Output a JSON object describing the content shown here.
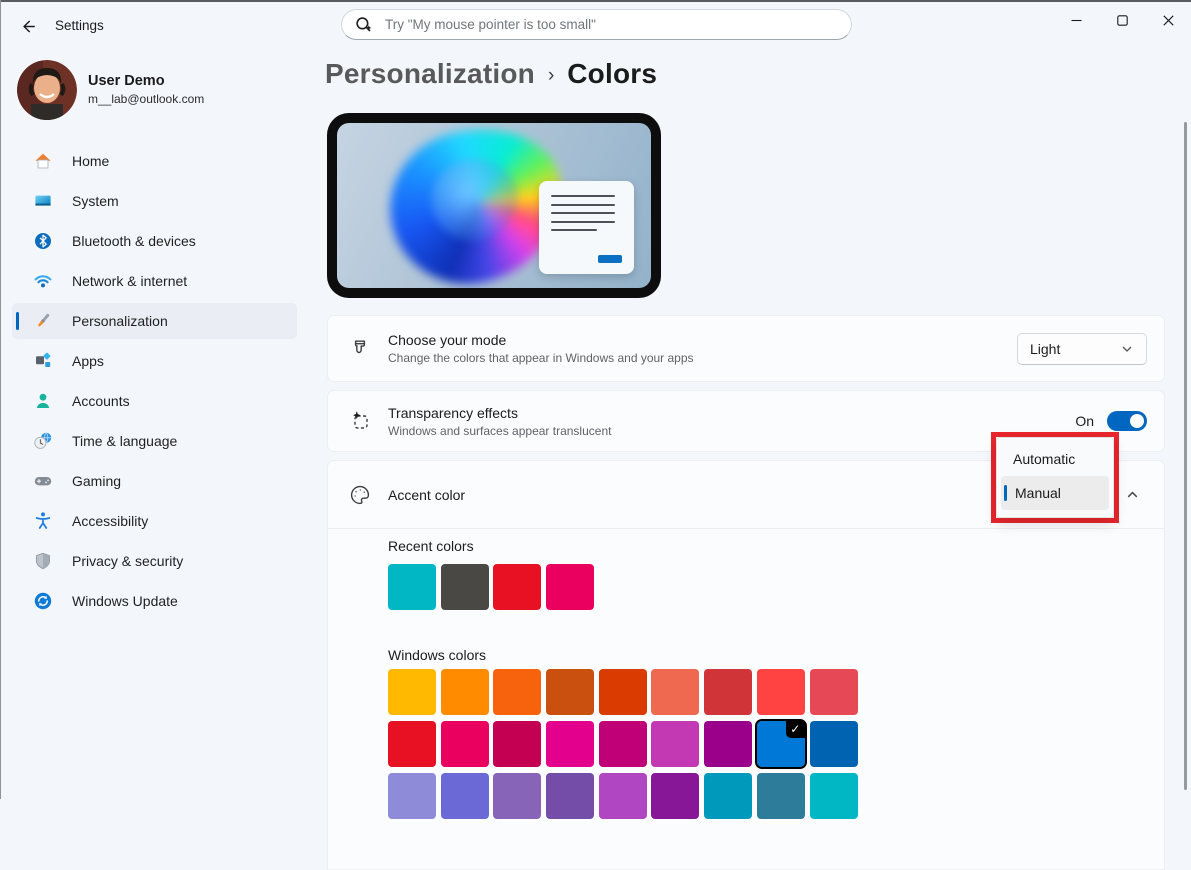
{
  "window": {
    "title": "Settings"
  },
  "search": {
    "placeholder": "Try \"My mouse pointer is too small\""
  },
  "user": {
    "name": "User Demo",
    "email": "m__lab@outlook.com"
  },
  "sidebar": {
    "items": [
      {
        "label": "Home",
        "icon": "home-icon"
      },
      {
        "label": "System",
        "icon": "system-icon"
      },
      {
        "label": "Bluetooth & devices",
        "icon": "bluetooth-icon"
      },
      {
        "label": "Network & internet",
        "icon": "network-icon"
      },
      {
        "label": "Personalization",
        "icon": "personalization-icon",
        "active": true
      },
      {
        "label": "Apps",
        "icon": "apps-icon"
      },
      {
        "label": "Accounts",
        "icon": "accounts-icon"
      },
      {
        "label": "Time & language",
        "icon": "time-language-icon"
      },
      {
        "label": "Gaming",
        "icon": "gaming-icon"
      },
      {
        "label": "Accessibility",
        "icon": "accessibility-icon"
      },
      {
        "label": "Privacy & security",
        "icon": "privacy-icon"
      },
      {
        "label": "Windows Update",
        "icon": "windows-update-icon"
      }
    ]
  },
  "breadcrumb": {
    "parent": "Personalization",
    "separator": "›",
    "current": "Colors"
  },
  "rows": {
    "mode": {
      "title": "Choose your mode",
      "subtitle": "Change the colors that appear in Windows and your apps",
      "value": "Light"
    },
    "transparency": {
      "title": "Transparency effects",
      "subtitle": "Windows and surfaces appear translucent",
      "state": "On"
    },
    "accent": {
      "title": "Accent color"
    }
  },
  "accent_dropdown": {
    "options": [
      "Automatic",
      "Manual"
    ],
    "selected": "Manual"
  },
  "accent_section": {
    "recent_label": "Recent colors",
    "recent_colors": [
      "#00B7C3",
      "#4A4845",
      "#E81123",
      "#EA005E"
    ],
    "windows_label": "Windows colors",
    "windows_colors": [
      "#FFB900",
      "#FF8C00",
      "#F7630C",
      "#CA5010",
      "#DA3B01",
      "#EF6950",
      "#D13438",
      "#FF4343",
      "#E74856",
      "#E81123",
      "#EA005E",
      "#C30052",
      "#E3008C",
      "#BF0077",
      "#C239B3",
      "#9A0089",
      "#0078D7",
      "#0063B1",
      "#8E8CD8",
      "#6B69D6",
      "#8764B8",
      "#744DA9",
      "#B146C2",
      "#881798",
      "#0099BC",
      "#2D7D9A",
      "#00B7C3"
    ],
    "selected_color": "#0078D7"
  },
  "colors": {
    "accent": "#0067C0",
    "annotation_red": "#E8262D"
  }
}
